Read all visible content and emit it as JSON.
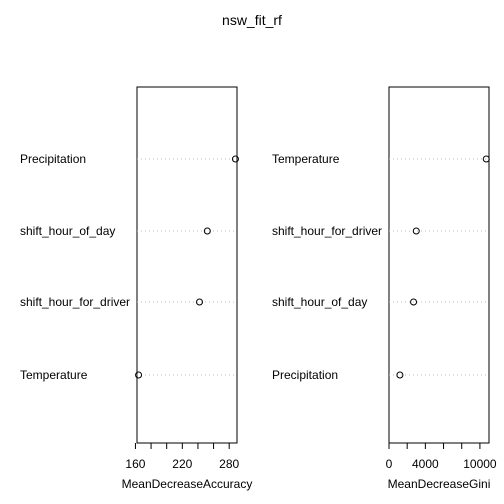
{
  "chart_data": [
    {
      "type": "dotchart",
      "title": "nsw_fit_rf",
      "xlabel": "MeanDecreaseAccuracy",
      "xlim": [
        162,
        290
      ],
      "xticks": [
        160,
        180,
        200,
        220,
        240,
        260,
        280
      ],
      "xtick_labels": [
        "160",
        "",
        "",
        "220",
        "",
        "",
        "280"
      ],
      "grid": "dotted",
      "points": [
        {
          "label": "Precipitation",
          "value": 288
        },
        {
          "label": "shift_hour_of_day",
          "value": 252
        },
        {
          "label": "shift_hour_for_driver",
          "value": 242
        },
        {
          "label": "Temperature",
          "value": 164
        }
      ]
    },
    {
      "type": "dotchart",
      "xlabel": "MeanDecreaseGini",
      "xlim": [
        0,
        11000
      ],
      "xticks": [
        0,
        2000,
        4000,
        6000,
        8000,
        10000
      ],
      "xtick_labels": [
        "0",
        "",
        "4000",
        "",
        "",
        "10000"
      ],
      "grid": "dotted",
      "points": [
        {
          "label": "Temperature",
          "value": 10700
        },
        {
          "label": "shift_hour_for_driver",
          "value": 3000
        },
        {
          "label": "shift_hour_of_day",
          "value": 2700
        },
        {
          "label": "Precipitation",
          "value": 1200
        }
      ]
    }
  ]
}
